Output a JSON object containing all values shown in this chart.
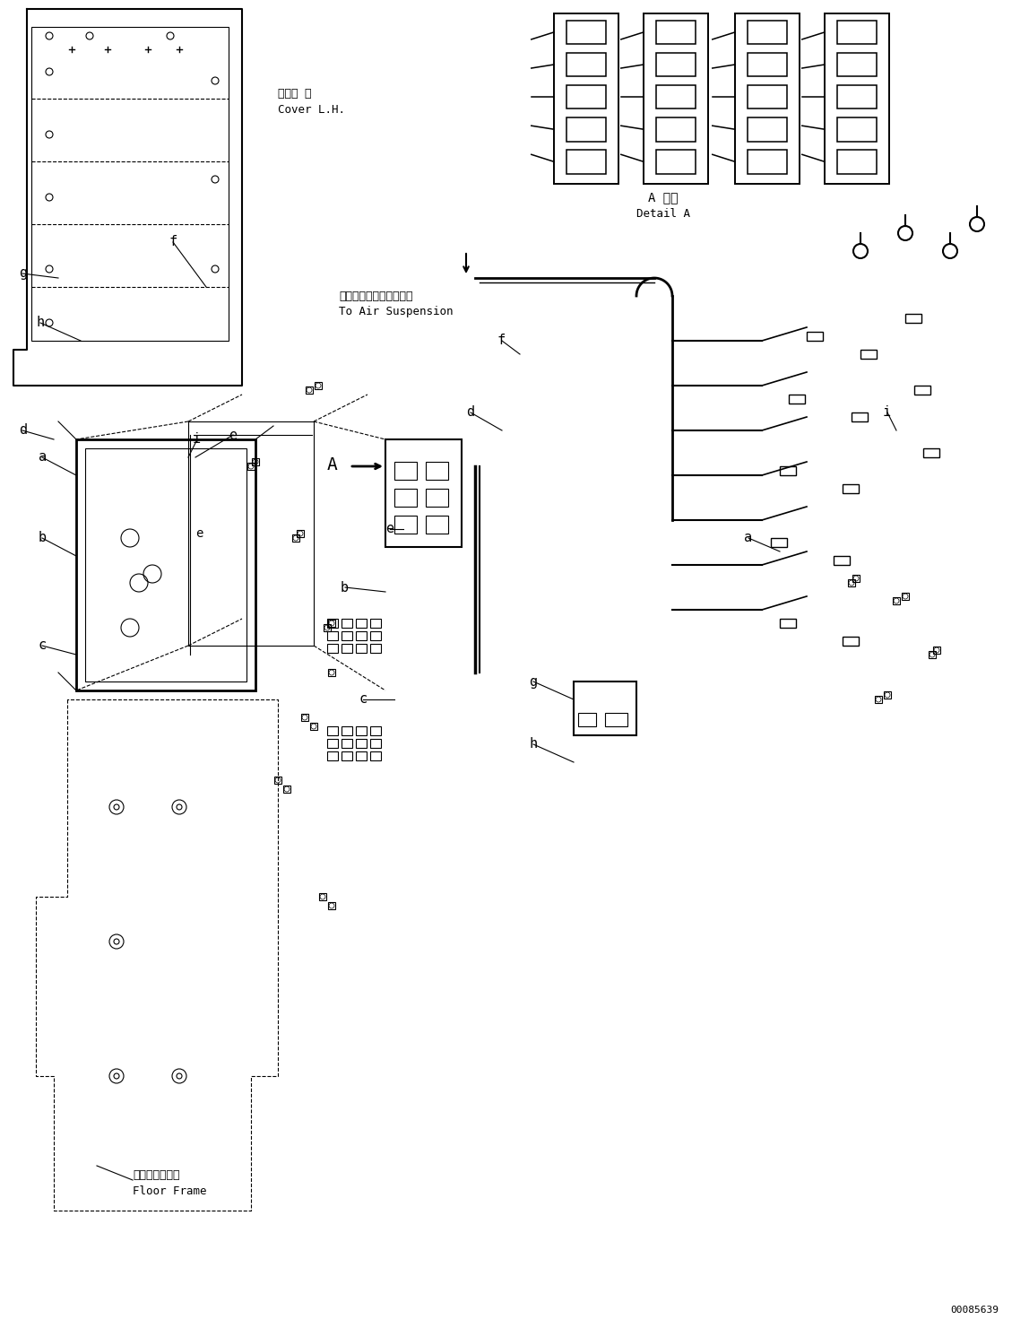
{
  "bg_color": "#ffffff",
  "line_color": "#000000",
  "fig_width": 11.48,
  "fig_height": 14.91,
  "part_id": "00085639",
  "detail_a_label_jp": "A 詳細",
  "detail_a_label_en": "Detail A",
  "cover_lh_jp": "カバー 左",
  "cover_lh_en": "Cover L.H.",
  "air_suspension_jp": "エアーサスペンションへ",
  "air_suspension_en": "To Air Suspension",
  "floor_frame_jp": "フロアフレーム",
  "floor_frame_en": "Floor Frame"
}
